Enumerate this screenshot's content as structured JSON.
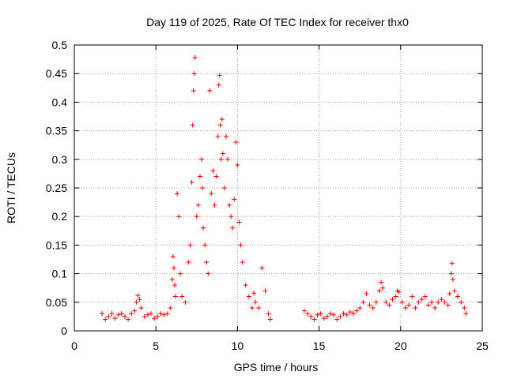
{
  "chart_data": {
    "type": "scatter",
    "title": "Day 119 of 2025, Rate Of TEC Index for receiver thx0",
    "xlabel": "GPS time / hours",
    "ylabel": "ROTI / TECUs",
    "xlim": [
      0,
      25
    ],
    "ylim": [
      0,
      0.5
    ],
    "xticks": [
      0,
      5,
      10,
      15,
      20,
      25
    ],
    "yticks": [
      0,
      0.05,
      0.1,
      0.15,
      0.2,
      0.25,
      0.3,
      0.35,
      0.4,
      0.45,
      0.5
    ],
    "grid": true,
    "marker": "+",
    "color": "#ff0000",
    "series": [
      {
        "name": "ROTI",
        "x": [
          1.7,
          1.9,
          2.1,
          2.3,
          2.5,
          2.7,
          2.9,
          3.1,
          3.3,
          3.5,
          3.7,
          3.8,
          3.9,
          4.0,
          4.1,
          4.3,
          4.5,
          4.7,
          4.9,
          5.1,
          5.3,
          5.5,
          5.7,
          5.9,
          6.0,
          6.05,
          6.1,
          6.15,
          6.2,
          6.3,
          6.4,
          6.5,
          6.6,
          6.8,
          7.0,
          7.1,
          7.2,
          7.25,
          7.3,
          7.35,
          7.4,
          7.5,
          7.6,
          7.7,
          7.8,
          7.85,
          7.9,
          8.0,
          8.1,
          8.2,
          8.3,
          8.4,
          8.5,
          8.6,
          8.7,
          8.8,
          8.85,
          8.9,
          8.95,
          9.0,
          9.05,
          9.1,
          9.2,
          9.3,
          9.4,
          9.5,
          9.6,
          9.7,
          9.8,
          9.9,
          10.0,
          10.1,
          10.2,
          10.3,
          10.5,
          10.7,
          10.9,
          11.0,
          11.1,
          11.3,
          11.5,
          11.7,
          11.9,
          12.0,
          14.1,
          14.3,
          14.5,
          14.7,
          14.9,
          15.1,
          15.3,
          15.5,
          15.7,
          15.9,
          16.1,
          16.3,
          16.5,
          16.7,
          16.9,
          17.1,
          17.3,
          17.5,
          17.7,
          17.9,
          18.1,
          18.3,
          18.5,
          18.7,
          18.8,
          18.9,
          19.1,
          19.3,
          19.5,
          19.7,
          19.8,
          19.9,
          20.1,
          20.3,
          20.5,
          20.7,
          20.9,
          21.1,
          21.3,
          21.5,
          21.7,
          21.9,
          22.1,
          22.3,
          22.5,
          22.7,
          22.9,
          23.0,
          23.1,
          23.15,
          23.2,
          23.3,
          23.5,
          23.7,
          23.9,
          24.0
        ],
        "y": [
          0.03,
          0.02,
          0.025,
          0.03,
          0.022,
          0.028,
          0.03,
          0.025,
          0.02,
          0.03,
          0.035,
          0.05,
          0.062,
          0.055,
          0.04,
          0.025,
          0.028,
          0.03,
          0.022,
          0.025,
          0.03,
          0.028,
          0.03,
          0.04,
          0.09,
          0.13,
          0.11,
          0.08,
          0.06,
          0.24,
          0.2,
          0.1,
          0.06,
          0.05,
          0.12,
          0.15,
          0.26,
          0.36,
          0.42,
          0.45,
          0.478,
          0.2,
          0.22,
          0.27,
          0.3,
          0.25,
          0.18,
          0.15,
          0.12,
          0.1,
          0.42,
          0.24,
          0.28,
          0.22,
          0.27,
          0.34,
          0.43,
          0.447,
          0.36,
          0.3,
          0.37,
          0.31,
          0.25,
          0.34,
          0.3,
          0.22,
          0.2,
          0.18,
          0.23,
          0.33,
          0.29,
          0.19,
          0.15,
          0.12,
          0.08,
          0.06,
          0.04,
          0.066,
          0.05,
          0.04,
          0.11,
          0.07,
          0.03,
          0.02,
          0.035,
          0.03,
          0.025,
          0.02,
          0.028,
          0.03,
          0.022,
          0.025,
          0.03,
          0.028,
          0.02,
          0.025,
          0.03,
          0.028,
          0.033,
          0.03,
          0.035,
          0.04,
          0.05,
          0.065,
          0.045,
          0.04,
          0.05,
          0.07,
          0.085,
          0.075,
          0.05,
          0.045,
          0.055,
          0.06,
          0.07,
          0.068,
          0.05,
          0.04,
          0.045,
          0.06,
          0.04,
          0.05,
          0.055,
          0.06,
          0.045,
          0.05,
          0.04,
          0.05,
          0.055,
          0.05,
          0.045,
          0.065,
          0.1,
          0.118,
          0.09,
          0.07,
          0.06,
          0.05,
          0.04,
          0.03
        ]
      }
    ]
  }
}
